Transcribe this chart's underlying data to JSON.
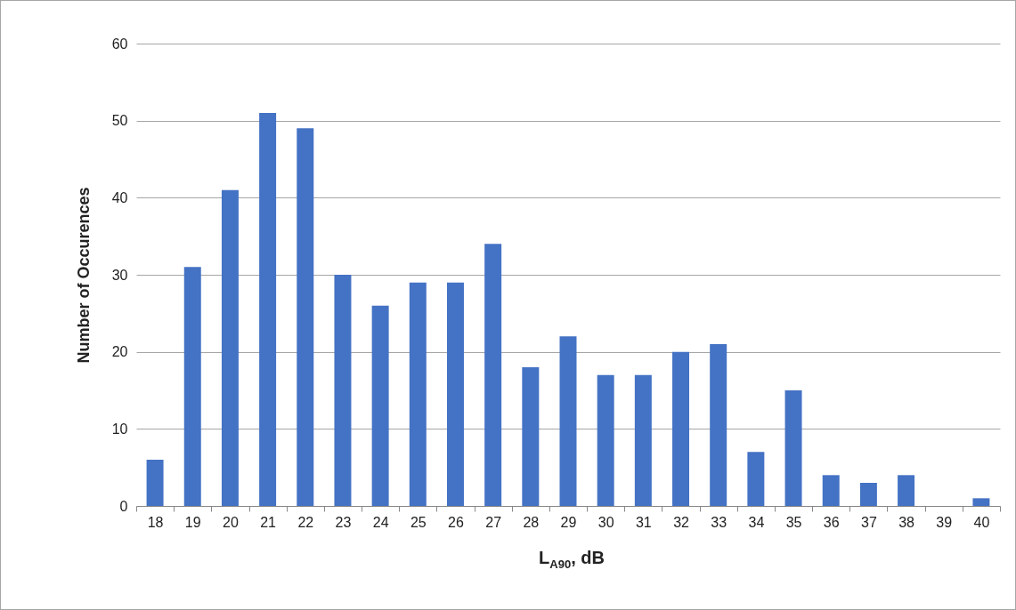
{
  "chart_data": {
    "type": "bar",
    "categories": [
      "18",
      "19",
      "20",
      "21",
      "22",
      "23",
      "24",
      "25",
      "26",
      "27",
      "28",
      "29",
      "30",
      "31",
      "32",
      "33",
      "34",
      "35",
      "36",
      "37",
      "38",
      "39",
      "40"
    ],
    "values": [
      6,
      31,
      41,
      51,
      49,
      30,
      26,
      29,
      29,
      34,
      18,
      22,
      17,
      17,
      20,
      21,
      7,
      15,
      4,
      3,
      4,
      0,
      1
    ],
    "color": "#4472c4",
    "xlabel": "L$_{A90}$, dB",
    "ylabel": "Number of Occurences",
    "ylim": [
      0,
      60
    ],
    "yticks": [
      0,
      10,
      20,
      30,
      40,
      50,
      60
    ],
    "grid": "y"
  }
}
